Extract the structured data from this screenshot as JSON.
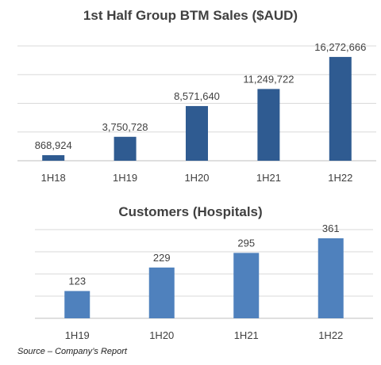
{
  "chart_data": [
    {
      "type": "bar",
      "title": "1st Half Group BTM Sales ($AUD)",
      "categories": [
        "1H18",
        "1H19",
        "1H20",
        "1H21",
        "1H22"
      ],
      "values": [
        868924,
        3750728,
        8571640,
        11249722,
        16272666
      ],
      "labels": [
        "868,924",
        "3,750,728",
        "8,571,640",
        "11,249,722",
        "16,272,666"
      ],
      "ylim": [
        0,
        18000000
      ],
      "grid": true,
      "color": "#2f5b91"
    },
    {
      "type": "bar",
      "title": "Customers (Hospitals)",
      "categories": [
        "1H19",
        "1H20",
        "1H21",
        "1H22"
      ],
      "values": [
        123,
        229,
        295,
        361
      ],
      "labels": [
        "123",
        "229",
        "295",
        "361"
      ],
      "ylim": [
        0,
        400
      ],
      "grid": true,
      "color": "#4f81bd"
    }
  ],
  "source_text": "Source – Company’s Report"
}
